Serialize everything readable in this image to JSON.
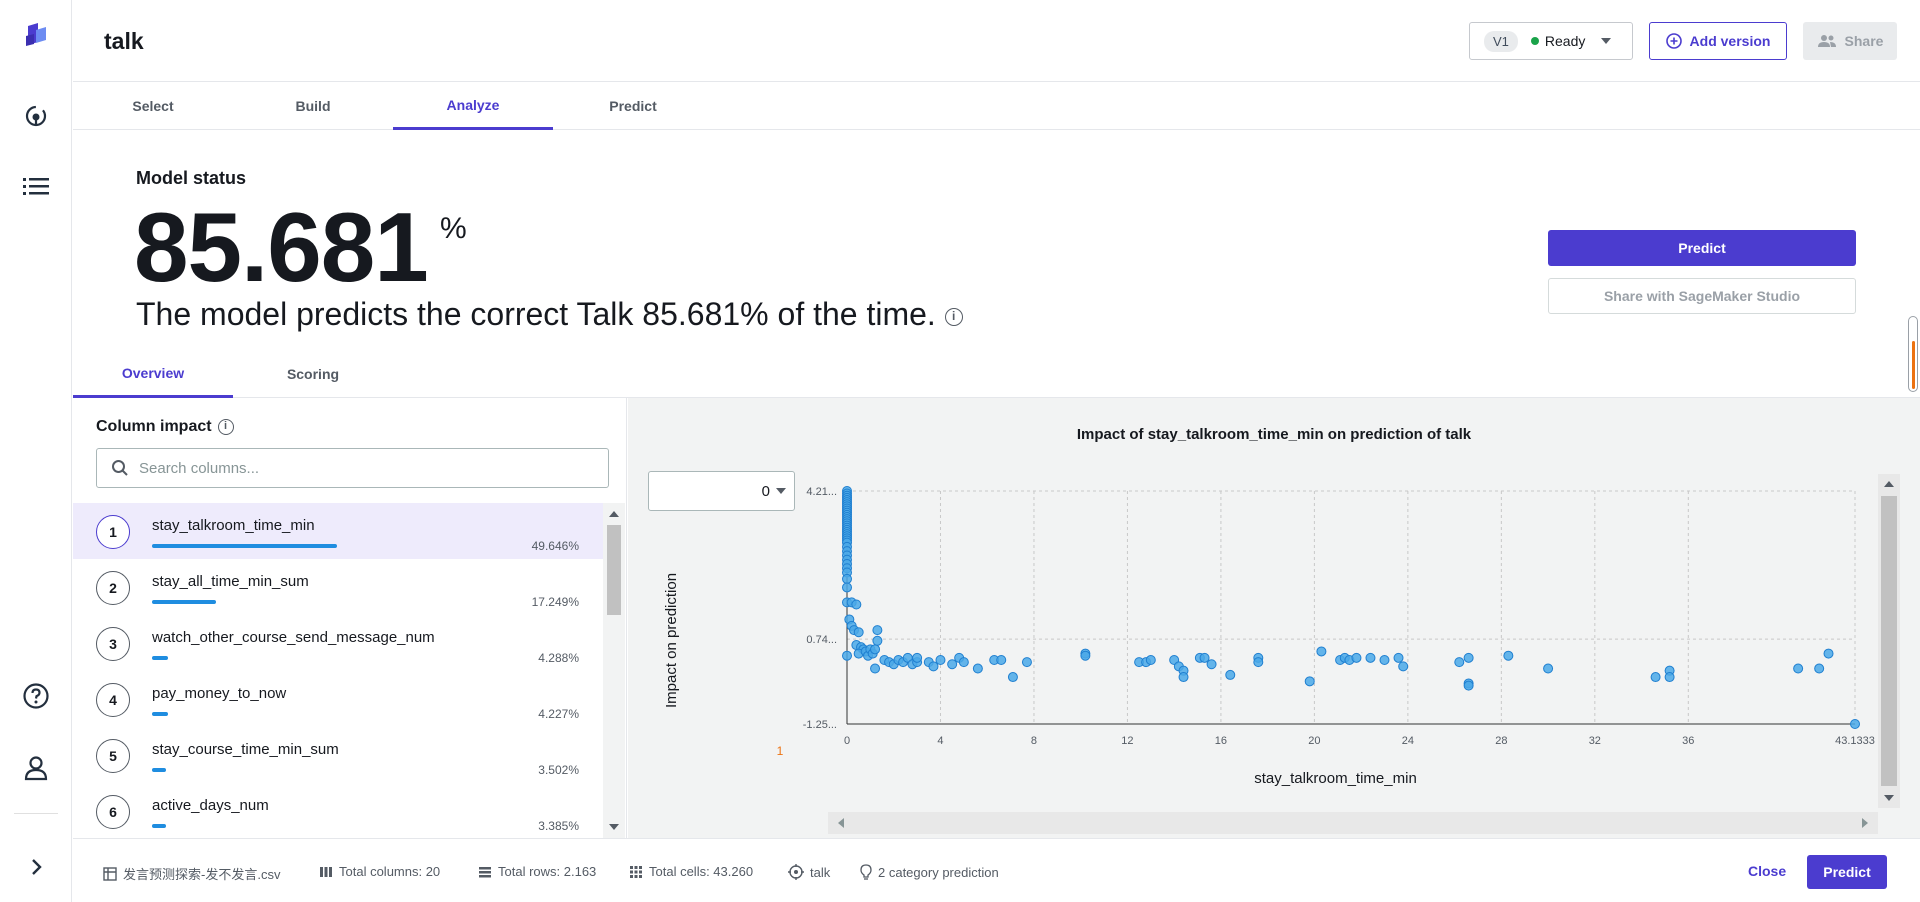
{
  "header": {
    "title": "talk",
    "version_tag": "V1",
    "status": "Ready",
    "add_version": "Add version",
    "share": "Share"
  },
  "tabs": [
    {
      "label": "Select"
    },
    {
      "label": "Build"
    },
    {
      "label": "Analyze",
      "active": true
    },
    {
      "label": "Predict"
    }
  ],
  "model_status": {
    "label": "Model status",
    "value": "85.681",
    "unit": "%",
    "sentence": "The model predicts the correct Talk 85.681% of the time.",
    "predict_button": "Predict",
    "share_button": "Share with SageMaker Studio"
  },
  "subtabs": [
    {
      "label": "Overview",
      "active": true
    },
    {
      "label": "Scoring"
    }
  ],
  "column_impact": {
    "title": "Column impact",
    "search_placeholder": "Search columns...",
    "rows": [
      {
        "rank": "1",
        "name": "stay_talkroom_time_min",
        "pct": "49.646%",
        "value": 49.646
      },
      {
        "rank": "2",
        "name": "stay_all_time_min_sum",
        "pct": "17.249%",
        "value": 17.249
      },
      {
        "rank": "3",
        "name": "watch_other_course_send_message_num",
        "pct": "4.288%",
        "value": 4.288
      },
      {
        "rank": "4",
        "name": "pay_money_to_now",
        "pct": "4.227%",
        "value": 4.227
      },
      {
        "rank": "5",
        "name": "stay_course_time_min_sum",
        "pct": "3.502%",
        "value": 3.502
      },
      {
        "rank": "6",
        "name": "active_days_num",
        "pct": "3.385%",
        "value": 3.385
      }
    ]
  },
  "chart": {
    "class_select": "0",
    "y_side_label": "1",
    "dot_color": "#4aa8e8",
    "dot_stroke": "#1f7fd0"
  },
  "chart_data": {
    "type": "scatter",
    "title": "Impact of stay_talkroom_time_min on prediction of talk",
    "xlabel": "stay_talkroom_time_min",
    "ylabel": "Impact on prediction",
    "x_ticks": [
      "0",
      "4",
      "8",
      "12",
      "16",
      "20",
      "24",
      "28",
      "32",
      "36",
      "43.1333"
    ],
    "y_ticks": [
      "4.21...",
      "0.74...",
      "-1.25..."
    ],
    "xlim": [
      0,
      43.1333
    ],
    "ylim": [
      -1.25,
      4.21
    ],
    "grid": true,
    "points": [
      [
        0,
        4.21
      ],
      [
        0,
        4.15
      ],
      [
        0,
        4.1
      ],
      [
        0,
        4.05
      ],
      [
        0,
        4.0
      ],
      [
        0,
        3.95
      ],
      [
        0,
        3.9
      ],
      [
        0,
        3.85
      ],
      [
        0,
        3.8
      ],
      [
        0,
        3.75
      ],
      [
        0,
        3.7
      ],
      [
        0,
        3.65
      ],
      [
        0,
        3.6
      ],
      [
        0,
        3.55
      ],
      [
        0,
        3.5
      ],
      [
        0,
        3.45
      ],
      [
        0,
        3.4
      ],
      [
        0,
        3.35
      ],
      [
        0,
        3.3
      ],
      [
        0,
        3.25
      ],
      [
        0,
        3.2
      ],
      [
        0,
        3.15
      ],
      [
        0,
        3.1
      ],
      [
        0,
        3.05
      ],
      [
        0,
        3.0
      ],
      [
        0,
        2.9
      ],
      [
        0,
        2.8
      ],
      [
        0,
        2.7
      ],
      [
        0,
        2.6
      ],
      [
        0,
        2.5
      ],
      [
        0,
        2.4
      ],
      [
        0,
        2.3
      ],
      [
        0,
        2.15
      ],
      [
        0,
        1.95
      ],
      [
        0,
        1.6
      ],
      [
        0,
        0.35
      ],
      [
        0.2,
        1.6
      ],
      [
        0.4,
        1.55
      ],
      [
        0.1,
        1.2
      ],
      [
        0.2,
        1.05
      ],
      [
        0.3,
        0.95
      ],
      [
        0.5,
        0.9
      ],
      [
        0.4,
        0.6
      ],
      [
        0.6,
        0.55
      ],
      [
        0.7,
        0.5
      ],
      [
        0.5,
        0.4
      ],
      [
        0.8,
        0.45
      ],
      [
        0.9,
        0.35
      ],
      [
        1.0,
        0.5
      ],
      [
        1.1,
        0.4
      ],
      [
        1.2,
        0.5
      ],
      [
        1.3,
        0.95
      ],
      [
        1.3,
        0.7
      ],
      [
        1.2,
        0.05
      ],
      [
        1.6,
        0.25
      ],
      [
        1.8,
        0.2
      ],
      [
        2.0,
        0.15
      ],
      [
        2.2,
        0.25
      ],
      [
        2.4,
        0.2
      ],
      [
        2.6,
        0.3
      ],
      [
        2.8,
        0.15
      ],
      [
        3.0,
        0.2
      ],
      [
        3.0,
        0.3
      ],
      [
        3.5,
        0.2
      ],
      [
        3.7,
        0.1
      ],
      [
        4.0,
        0.25
      ],
      [
        4.5,
        0.15
      ],
      [
        4.8,
        0.3
      ],
      [
        5.0,
        0.2
      ],
      [
        5.6,
        0.05
      ],
      [
        6.3,
        0.25
      ],
      [
        6.6,
        0.25
      ],
      [
        7.1,
        -0.15
      ],
      [
        7.7,
        0.2
      ],
      [
        10.2,
        0.4
      ],
      [
        10.2,
        0.35
      ],
      [
        12.5,
        0.2
      ],
      [
        12.8,
        0.2
      ],
      [
        13.0,
        0.25
      ],
      [
        14.0,
        0.25
      ],
      [
        14.2,
        0.1
      ],
      [
        14.4,
        0.0
      ],
      [
        14.4,
        -0.15
      ],
      [
        15.1,
        0.3
      ],
      [
        15.3,
        0.3
      ],
      [
        15.6,
        0.15
      ],
      [
        16.4,
        -0.1
      ],
      [
        17.6,
        0.3
      ],
      [
        17.6,
        0.2
      ],
      [
        19.8,
        -0.25
      ],
      [
        20.3,
        0.45
      ],
      [
        21.1,
        0.25
      ],
      [
        21.3,
        0.3
      ],
      [
        21.5,
        0.25
      ],
      [
        21.8,
        0.3
      ],
      [
        22.4,
        0.3
      ],
      [
        23.0,
        0.25
      ],
      [
        23.6,
        0.3
      ],
      [
        23.8,
        0.1
      ],
      [
        26.2,
        0.2
      ],
      [
        26.6,
        0.3
      ],
      [
        26.6,
        -0.3
      ],
      [
        26.6,
        -0.35
      ],
      [
        28.3,
        0.35
      ],
      [
        30.0,
        0.05
      ],
      [
        34.6,
        -0.15
      ],
      [
        35.2,
        0.0
      ],
      [
        35.2,
        -0.15
      ],
      [
        40.7,
        0.05
      ],
      [
        41.6,
        0.05
      ],
      [
        42.0,
        0.4
      ],
      [
        43.1333,
        -1.25
      ]
    ]
  },
  "footer": {
    "file": "发言预测探索-发不发言.csv",
    "total_columns": "Total columns: 20",
    "total_rows": "Total rows: 2.163",
    "total_cells": "Total cells: 43.260",
    "target": "talk",
    "prediction_type": "2 category prediction",
    "close": "Close",
    "predict": "Predict"
  }
}
